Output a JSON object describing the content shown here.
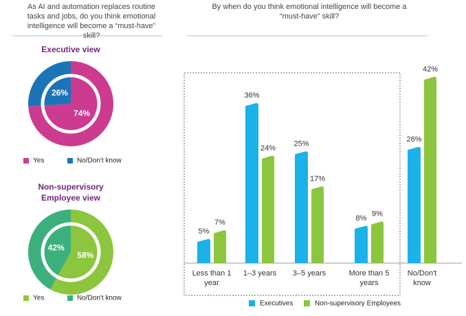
{
  "left_panel": {
    "title": "As AI and automation replaces routine tasks and jobs, do you think emotional intelligence will become a “must-have” skill?"
  },
  "chart_data": [
    {
      "type": "pie",
      "title": "Executive view",
      "categories": [
        "Yes",
        "No/Don't know"
      ],
      "values": [
        74,
        26
      ],
      "value_labels": [
        "74%",
        "26%"
      ],
      "colors": [
        "#cc3b8f",
        "#1b74b8"
      ]
    },
    {
      "type": "pie",
      "title": "Non-supervisory Employee view",
      "categories": [
        "Yes",
        "No/Don't know"
      ],
      "values": [
        58,
        42
      ],
      "value_labels": [
        "58%",
        "42%"
      ],
      "colors": [
        "#8cc63e",
        "#3bb07c"
      ]
    },
    {
      "type": "bar",
      "title": "By when do you think emotional intelligence  will become a “must-have” skill?",
      "categories": [
        "Less than 1 year",
        "1–3 years",
        "3–5 years",
        "More than 5 years",
        "No/Don't know"
      ],
      "series": [
        {
          "name": "Executives",
          "color": "#1ab2e8",
          "values": [
            5,
            36,
            25,
            8,
            26
          ],
          "value_labels": [
            "5%",
            "36%",
            "25%",
            "8%",
            "26%"
          ]
        },
        {
          "name": "Non-supervisory Employees",
          "color": "#8cc63e",
          "values": [
            7,
            24,
            17,
            9,
            42
          ],
          "value_labels": [
            "7%",
            "24%",
            "17%",
            "9%",
            "42%"
          ]
        }
      ]
    }
  ]
}
